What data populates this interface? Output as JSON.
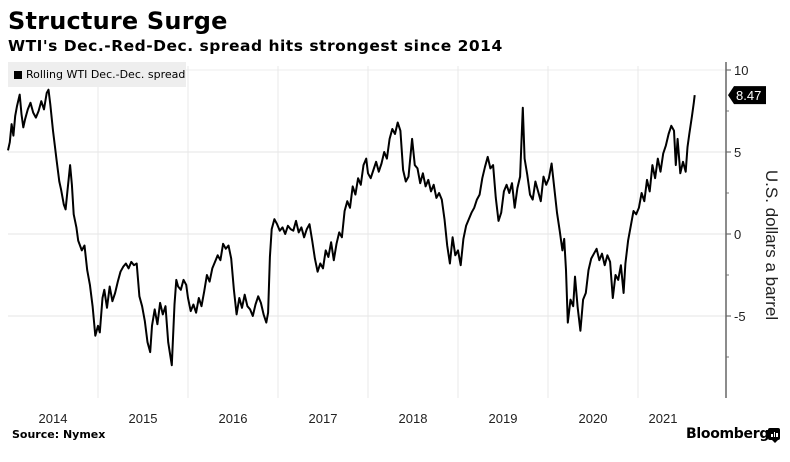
{
  "chart_data": {
    "type": "line",
    "title": "Structure Surge",
    "subtitle": "WTI's Dec.-Red-Dec. spread hits strongest since 2014",
    "xlabel": "",
    "ylabel": "U.S. dollars a barrel",
    "xlim": [
      2014.0,
      2021.3
    ],
    "ylim": [
      -9.5,
      10.2
    ],
    "x_ticks": [
      "2014",
      "2015",
      "2016",
      "2017",
      "2018",
      "2019",
      "2020",
      "2021"
    ],
    "y_ticks": [
      10,
      5,
      0,
      -5
    ],
    "grid": true,
    "legend": {
      "placement": "top-left",
      "entries": [
        "Rolling WTI Dec.-Dec. spread"
      ]
    },
    "last_value_label": "8.47",
    "series": [
      {
        "name": "Rolling WTI Dec.-Dec. spread",
        "color": "#000000",
        "points": [
          [
            2014.0,
            5.1
          ],
          [
            2014.02,
            5.6
          ],
          [
            2014.04,
            6.7
          ],
          [
            2014.06,
            6.0
          ],
          [
            2014.08,
            7.2
          ],
          [
            2014.1,
            7.8
          ],
          [
            2014.13,
            8.5
          ],
          [
            2014.15,
            7.3
          ],
          [
            2014.17,
            6.5
          ],
          [
            2014.19,
            7.0
          ],
          [
            2014.22,
            7.6
          ],
          [
            2014.25,
            8.0
          ],
          [
            2014.28,
            7.4
          ],
          [
            2014.31,
            7.1
          ],
          [
            2014.34,
            7.5
          ],
          [
            2014.37,
            8.1
          ],
          [
            2014.4,
            7.6
          ],
          [
            2014.43,
            8.6
          ],
          [
            2014.45,
            8.8
          ],
          [
            2014.47,
            7.9
          ],
          [
            2014.5,
            6.3
          ],
          [
            2014.52,
            5.4
          ],
          [
            2014.54,
            4.5
          ],
          [
            2014.57,
            3.2
          ],
          [
            2014.59,
            2.7
          ],
          [
            2014.62,
            1.8
          ],
          [
            2014.64,
            1.5
          ],
          [
            2014.66,
            2.6
          ],
          [
            2014.69,
            4.2
          ],
          [
            2014.71,
            3.0
          ],
          [
            2014.73,
            1.2
          ],
          [
            2014.76,
            0.4
          ],
          [
            2014.78,
            -0.4
          ],
          [
            2014.82,
            -1.0
          ],
          [
            2014.85,
            -0.7
          ],
          [
            2014.88,
            -2.2
          ],
          [
            2014.91,
            -3.1
          ],
          [
            2014.94,
            -4.4
          ],
          [
            2014.97,
            -6.2
          ],
          [
            2015.0,
            -5.6
          ],
          [
            2015.02,
            -6.0
          ],
          [
            2015.05,
            -3.9
          ],
          [
            2015.07,
            -3.4
          ],
          [
            2015.1,
            -4.5
          ],
          [
            2015.13,
            -3.2
          ],
          [
            2015.16,
            -4.1
          ],
          [
            2015.19,
            -3.6
          ],
          [
            2015.22,
            -2.9
          ],
          [
            2015.25,
            -2.3
          ],
          [
            2015.28,
            -2.0
          ],
          [
            2015.31,
            -1.8
          ],
          [
            2015.34,
            -2.1
          ],
          [
            2015.37,
            -1.7
          ],
          [
            2015.4,
            -1.9
          ],
          [
            2015.43,
            -1.8
          ],
          [
            2015.46,
            -3.8
          ],
          [
            2015.49,
            -4.4
          ],
          [
            2015.52,
            -5.3
          ],
          [
            2015.55,
            -6.6
          ],
          [
            2015.58,
            -7.2
          ],
          [
            2015.6,
            -5.6
          ],
          [
            2015.63,
            -4.6
          ],
          [
            2015.66,
            -5.5
          ],
          [
            2015.69,
            -4.2
          ],
          [
            2015.72,
            -4.9
          ],
          [
            2015.75,
            -4.4
          ],
          [
            2015.78,
            -6.6
          ],
          [
            2015.8,
            -7.3
          ],
          [
            2015.82,
            -8.0
          ],
          [
            2015.85,
            -4.3
          ],
          [
            2015.87,
            -2.8
          ],
          [
            2015.89,
            -3.2
          ],
          [
            2015.92,
            -3.4
          ],
          [
            2015.95,
            -2.8
          ],
          [
            2015.98,
            -3.1
          ],
          [
            2016.0,
            -3.9
          ],
          [
            2016.03,
            -4.7
          ],
          [
            2016.06,
            -4.3
          ],
          [
            2016.09,
            -4.8
          ],
          [
            2016.12,
            -3.9
          ],
          [
            2016.15,
            -4.4
          ],
          [
            2016.18,
            -3.5
          ],
          [
            2016.21,
            -2.5
          ],
          [
            2016.24,
            -2.9
          ],
          [
            2016.27,
            -2.1
          ],
          [
            2016.3,
            -1.7
          ],
          [
            2016.33,
            -1.3
          ],
          [
            2016.36,
            -1.6
          ],
          [
            2016.39,
            -0.6
          ],
          [
            2016.42,
            -0.9
          ],
          [
            2016.45,
            -0.7
          ],
          [
            2016.48,
            -1.5
          ],
          [
            2016.51,
            -3.4
          ],
          [
            2016.54,
            -4.9
          ],
          [
            2016.57,
            -3.9
          ],
          [
            2016.6,
            -4.5
          ],
          [
            2016.63,
            -3.7
          ],
          [
            2016.66,
            -4.4
          ],
          [
            2016.69,
            -4.6
          ],
          [
            2016.72,
            -5.0
          ],
          [
            2016.75,
            -4.3
          ],
          [
            2016.78,
            -3.8
          ],
          [
            2016.81,
            -4.2
          ],
          [
            2016.84,
            -4.9
          ],
          [
            2016.87,
            -5.4
          ],
          [
            2016.89,
            -4.8
          ],
          [
            2016.91,
            -1.4
          ],
          [
            2016.93,
            0.3
          ],
          [
            2016.96,
            0.9
          ],
          [
            2016.99,
            0.6
          ],
          [
            2017.02,
            0.2
          ],
          [
            2017.05,
            0.4
          ],
          [
            2017.08,
            0.0
          ],
          [
            2017.11,
            0.5
          ],
          [
            2017.14,
            0.3
          ],
          [
            2017.17,
            0.2
          ],
          [
            2017.2,
            0.8
          ],
          [
            2017.23,
            0.1
          ],
          [
            2017.26,
            0.4
          ],
          [
            2017.29,
            -0.2
          ],
          [
            2017.32,
            0.3
          ],
          [
            2017.35,
            0.6
          ],
          [
            2017.38,
            -0.4
          ],
          [
            2017.41,
            -1.5
          ],
          [
            2017.44,
            -2.3
          ],
          [
            2017.47,
            -1.8
          ],
          [
            2017.5,
            -2.1
          ],
          [
            2017.53,
            -1.0
          ],
          [
            2017.56,
            -1.4
          ],
          [
            2017.59,
            -0.5
          ],
          [
            2017.62,
            -1.6
          ],
          [
            2017.65,
            -0.6
          ],
          [
            2017.68,
            0.1
          ],
          [
            2017.71,
            -0.2
          ],
          [
            2017.74,
            1.4
          ],
          [
            2017.77,
            2.0
          ],
          [
            2017.8,
            1.6
          ],
          [
            2017.83,
            2.9
          ],
          [
            2017.86,
            2.4
          ],
          [
            2017.89,
            3.4
          ],
          [
            2017.92,
            3.0
          ],
          [
            2017.95,
            4.2
          ],
          [
            2017.98,
            4.6
          ],
          [
            2018.0,
            3.7
          ],
          [
            2018.03,
            3.4
          ],
          [
            2018.06,
            3.9
          ],
          [
            2018.09,
            4.4
          ],
          [
            2018.12,
            3.8
          ],
          [
            2018.15,
            4.3
          ],
          [
            2018.18,
            5.0
          ],
          [
            2018.21,
            4.6
          ],
          [
            2018.24,
            5.8
          ],
          [
            2018.27,
            6.4
          ],
          [
            2018.3,
            6.1
          ],
          [
            2018.33,
            6.8
          ],
          [
            2018.36,
            6.3
          ],
          [
            2018.39,
            3.9
          ],
          [
            2018.42,
            3.2
          ],
          [
            2018.45,
            3.5
          ],
          [
            2018.49,
            5.8
          ],
          [
            2018.52,
            4.2
          ],
          [
            2018.55,
            4.0
          ],
          [
            2018.58,
            3.1
          ],
          [
            2018.61,
            3.7
          ],
          [
            2018.64,
            2.9
          ],
          [
            2018.67,
            3.3
          ],
          [
            2018.7,
            2.6
          ],
          [
            2018.73,
            3.0
          ],
          [
            2018.76,
            2.2
          ],
          [
            2018.79,
            2.5
          ],
          [
            2018.82,
            2.1
          ],
          [
            2018.85,
            0.9
          ],
          [
            2018.88,
            -0.7
          ],
          [
            2018.91,
            -1.8
          ],
          [
            2018.94,
            -0.2
          ],
          [
            2018.97,
            -1.3
          ],
          [
            2019.0,
            -1.0
          ],
          [
            2019.03,
            -1.9
          ],
          [
            2019.06,
            -0.3
          ],
          [
            2019.09,
            0.5
          ],
          [
            2019.12,
            0.9
          ],
          [
            2019.15,
            1.3
          ],
          [
            2019.18,
            1.6
          ],
          [
            2019.21,
            2.1
          ],
          [
            2019.24,
            2.4
          ],
          [
            2019.27,
            3.4
          ],
          [
            2019.3,
            4.1
          ],
          [
            2019.33,
            4.7
          ],
          [
            2019.36,
            4.0
          ],
          [
            2019.39,
            4.2
          ],
          [
            2019.42,
            2.2
          ],
          [
            2019.45,
            0.8
          ],
          [
            2019.48,
            1.3
          ],
          [
            2019.51,
            2.6
          ],
          [
            2019.54,
            3.0
          ],
          [
            2019.57,
            2.5
          ],
          [
            2019.6,
            3.1
          ],
          [
            2019.63,
            1.6
          ],
          [
            2019.66,
            2.8
          ],
          [
            2019.69,
            3.5
          ],
          [
            2019.72,
            7.7
          ],
          [
            2019.74,
            4.6
          ],
          [
            2019.77,
            3.6
          ],
          [
            2019.8,
            2.4
          ],
          [
            2019.83,
            2.1
          ],
          [
            2019.86,
            3.2
          ],
          [
            2019.89,
            2.6
          ],
          [
            2019.92,
            2.0
          ],
          [
            2019.95,
            3.5
          ],
          [
            2019.98,
            3.0
          ],
          [
            2020.01,
            3.4
          ],
          [
            2020.04,
            4.3
          ],
          [
            2020.07,
            2.8
          ],
          [
            2020.1,
            1.3
          ],
          [
            2020.13,
            0.2
          ],
          [
            2020.16,
            -1.0
          ],
          [
            2020.18,
            -0.3
          ],
          [
            2020.2,
            -2.2
          ],
          [
            2020.22,
            -5.4
          ],
          [
            2020.25,
            -4.0
          ],
          [
            2020.28,
            -4.4
          ],
          [
            2020.3,
            -2.6
          ],
          [
            2020.33,
            -4.5
          ],
          [
            2020.36,
            -5.9
          ],
          [
            2020.39,
            -4.0
          ],
          [
            2020.42,
            -3.6
          ],
          [
            2020.45,
            -2.2
          ],
          [
            2020.48,
            -1.5
          ],
          [
            2020.51,
            -1.2
          ],
          [
            2020.54,
            -0.9
          ],
          [
            2020.57,
            -1.6
          ],
          [
            2020.6,
            -1.2
          ],
          [
            2020.63,
            -1.9
          ],
          [
            2020.66,
            -1.3
          ],
          [
            2020.69,
            -1.7
          ],
          [
            2020.72,
            -3.9
          ],
          [
            2020.75,
            -2.5
          ],
          [
            2020.78,
            -2.8
          ],
          [
            2020.81,
            -1.9
          ],
          [
            2020.84,
            -3.6
          ],
          [
            2020.86,
            -1.8
          ],
          [
            2020.89,
            -0.4
          ],
          [
            2020.92,
            0.5
          ],
          [
            2020.95,
            1.4
          ],
          [
            2020.98,
            1.2
          ],
          [
            2021.01,
            1.6
          ],
          [
            2021.04,
            2.5
          ],
          [
            2021.07,
            2.0
          ],
          [
            2021.1,
            3.3
          ],
          [
            2021.13,
            2.6
          ],
          [
            2021.16,
            4.2
          ],
          [
            2021.19,
            3.4
          ],
          [
            2021.22,
            4.6
          ],
          [
            2021.25,
            3.8
          ],
          [
            2021.28,
            4.9
          ],
          [
            2021.31,
            5.4
          ],
          [
            2021.34,
            6.1
          ],
          [
            2021.37,
            6.6
          ],
          [
            2021.4,
            6.3
          ],
          [
            2021.42,
            4.2
          ],
          [
            2021.44,
            5.8
          ],
          [
            2021.47,
            3.7
          ],
          [
            2021.5,
            4.4
          ],
          [
            2021.53,
            3.8
          ],
          [
            2021.55,
            5.3
          ],
          [
            2021.57,
            6.1
          ],
          [
            2021.6,
            7.2
          ],
          [
            2021.62,
            8.0
          ],
          [
            2021.63,
            8.47
          ]
        ]
      }
    ]
  },
  "footer": {
    "source": "Source: Nymex",
    "brand": "Bloomberg"
  }
}
